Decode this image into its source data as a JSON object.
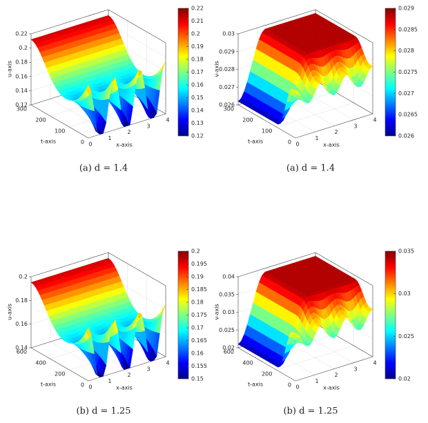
{
  "panels": [
    {
      "zlabel": "u-axis",
      "tlabel": "t-axis",
      "xlabel": "x-axis",
      "zlim": [
        0.12,
        0.22
      ],
      "zticks": [
        0.12,
        0.14,
        0.16,
        0.18,
        0.2,
        0.22
      ],
      "tlim": [
        0,
        300
      ],
      "tticks": [
        0,
        100,
        200,
        300
      ],
      "xlim": [
        0,
        4
      ],
      "xticks": [
        0,
        1,
        2,
        3,
        4
      ],
      "clim": [
        0.12,
        0.22
      ],
      "cticks": [
        0.12,
        0.13,
        0.14,
        0.15,
        0.16,
        0.17,
        0.18,
        0.19,
        0.2,
        0.21,
        0.22
      ],
      "caption": "(a) d = 1.4"
    },
    {
      "zlabel": "v-axis",
      "tlabel": "t-axis",
      "xlabel": "x-axis",
      "zlim": [
        0.026,
        0.03
      ],
      "zticks": [
        0.026,
        0.027,
        0.028,
        0.029,
        0.03
      ],
      "tlim": [
        0,
        300
      ],
      "tticks": [
        0,
        100,
        200,
        300
      ],
      "xlim": [
        0,
        4
      ],
      "xticks": [
        0,
        1,
        2,
        3,
        4
      ],
      "clim": [
        0.026,
        0.029
      ],
      "cticks": [
        0.026,
        0.0265,
        0.027,
        0.0275,
        0.028,
        0.0285,
        0.029
      ],
      "caption": "(a) d = 1.4"
    },
    {
      "zlabel": "u-axis",
      "tlabel": "t-axis",
      "xlabel": "x-axis",
      "zlim": [
        0.14,
        0.2
      ],
      "zticks": [
        0.14,
        0.16,
        0.18,
        0.2
      ],
      "tlim": [
        0,
        600
      ],
      "tticks": [
        0,
        200,
        400,
        600
      ],
      "xlim": [
        0,
        4
      ],
      "xticks": [
        0,
        1,
        2,
        3,
        4
      ],
      "clim": [
        0.15,
        0.2
      ],
      "cticks": [
        0.15,
        0.155,
        0.16,
        0.165,
        0.17,
        0.175,
        0.18,
        0.185,
        0.19,
        0.195,
        0.2
      ],
      "caption": "(b) d = 1.25"
    },
    {
      "zlabel": "v-axis",
      "tlabel": "t-axis",
      "xlabel": "x-axis",
      "zlim": [
        0.02,
        0.04
      ],
      "zticks": [
        0.02,
        0.025,
        0.03,
        0.035,
        0.04
      ],
      "tlim": [
        0,
        600
      ],
      "tticks": [
        0,
        200,
        400,
        600
      ],
      "xlim": [
        0,
        4
      ],
      "xticks": [
        0,
        1,
        2,
        3,
        4
      ],
      "clim": [
        0.02,
        0.035
      ],
      "cticks": [
        0.02,
        0.025,
        0.03,
        0.035
      ],
      "caption": "(b) d = 1.25"
    }
  ]
}
